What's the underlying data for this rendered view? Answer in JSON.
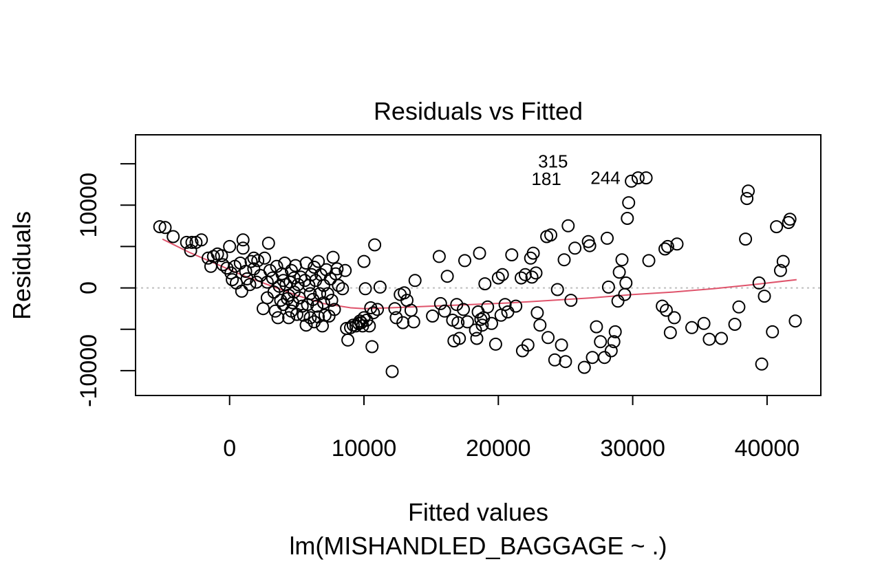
{
  "chart_data": {
    "type": "scatter",
    "title": "Residuals vs Fitted",
    "xlabel": "Fitted values",
    "sublabel": "lm(MISHANDLED_BAGGAGE ~ .)",
    "ylabel": "Residuals",
    "xlim": [
      -7000,
      44000
    ],
    "ylim": [
      -13000,
      18500
    ],
    "x_ticks": [
      {
        "value": 0,
        "label": "0"
      },
      {
        "value": 10000,
        "label": "10000"
      },
      {
        "value": 20000,
        "label": "20000"
      },
      {
        "value": 30000,
        "label": "30000"
      },
      {
        "value": 40000,
        "label": "40000"
      }
    ],
    "y_ticks": [
      {
        "value": -10000,
        "label": "-10000"
      },
      {
        "value": 0,
        "label": "0"
      },
      {
        "value": 10000,
        "label": "10000"
      }
    ],
    "y_minor_ticks": [
      -5000,
      5000,
      15000
    ],
    "reference_line": {
      "y": 0,
      "color": "#bebebe",
      "style": "dotted"
    },
    "point_color": "#000000",
    "smooth_color": "#df536b",
    "smooth": [
      [
        -5000,
        5900
      ],
      [
        -3000,
        4300
      ],
      [
        -1000,
        2900
      ],
      [
        1000,
        1500
      ],
      [
        3000,
        300
      ],
      [
        5000,
        -900
      ],
      [
        7000,
        -1900
      ],
      [
        9000,
        -2400
      ],
      [
        10000,
        -2500
      ],
      [
        12000,
        -2400
      ],
      [
        15000,
        -2200
      ],
      [
        18000,
        -2000
      ],
      [
        21000,
        -1800
      ],
      [
        24000,
        -1500
      ],
      [
        27000,
        -1200
      ],
      [
        30000,
        -800
      ],
      [
        33000,
        -500
      ],
      [
        36000,
        -100
      ],
      [
        39000,
        400
      ],
      [
        42200,
        1000
      ]
    ],
    "annotations": [
      {
        "label": "315",
        "x": 25900,
        "y": 15300
      },
      {
        "label": "181",
        "x": 25400,
        "y": 13200
      },
      {
        "label": "244",
        "x": 29800,
        "y": 13300
      }
    ],
    "points": [
      [
        -5200,
        7400
      ],
      [
        -4800,
        7300
      ],
      [
        -4200,
        6200
      ],
      [
        -3200,
        5500
      ],
      [
        -2900,
        4500
      ],
      [
        -2800,
        5500
      ],
      [
        -2500,
        5500
      ],
      [
        -2100,
        5800
      ],
      [
        -1600,
        3600
      ],
      [
        -1400,
        2600
      ],
      [
        -1200,
        3800
      ],
      [
        -900,
        4100
      ],
      [
        -600,
        3900
      ],
      [
        -500,
        2800
      ],
      [
        -200,
        2400
      ],
      [
        0,
        5000
      ],
      [
        100,
        1800
      ],
      [
        200,
        1000
      ],
      [
        400,
        2600
      ],
      [
        500,
        600
      ],
      [
        800,
        3000
      ],
      [
        900,
        -400
      ],
      [
        1000,
        4800
      ],
      [
        1000,
        5800
      ],
      [
        1200,
        2000
      ],
      [
        1300,
        1100
      ],
      [
        1500,
        400
      ],
      [
        1600,
        3200
      ],
      [
        1800,
        3600
      ],
      [
        1800,
        2300
      ],
      [
        2000,
        700
      ],
      [
        2100,
        3300
      ],
      [
        2300,
        1500
      ],
      [
        2500,
        -2500
      ],
      [
        2600,
        3600
      ],
      [
        2800,
        -1200
      ],
      [
        2800,
        700
      ],
      [
        2900,
        5400
      ],
      [
        3000,
        2100
      ],
      [
        3200,
        1200
      ],
      [
        3300,
        -500
      ],
      [
        3400,
        -2800
      ],
      [
        3500,
        2600
      ],
      [
        3600,
        -3600
      ],
      [
        3700,
        200
      ],
      [
        3800,
        -1500
      ],
      [
        3900,
        1700
      ],
      [
        4000,
        900
      ],
      [
        4000,
        -2000
      ],
      [
        4100,
        3000
      ],
      [
        4200,
        400
      ],
      [
        4300,
        -1300
      ],
      [
        4400,
        -900
      ],
      [
        4400,
        -3600
      ],
      [
        4500,
        700
      ],
      [
        4600,
        2100
      ],
      [
        4600,
        -2800
      ],
      [
        4700,
        -1800
      ],
      [
        4800,
        1200
      ],
      [
        4800,
        -500
      ],
      [
        4900,
        2700
      ],
      [
        5000,
        -3200
      ],
      [
        5100,
        400
      ],
      [
        5200,
        -1200
      ],
      [
        5300,
        1300
      ],
      [
        5400,
        -2200
      ],
      [
        5500,
        -3300
      ],
      [
        5600,
        900
      ],
      [
        5700,
        3000
      ],
      [
        5700,
        -4500
      ],
      [
        5800,
        -2000
      ],
      [
        5900,
        300
      ],
      [
        6000,
        -700
      ],
      [
        6000,
        -3600
      ],
      [
        6100,
        1600
      ],
      [
        6200,
        -1400
      ],
      [
        6300,
        2500
      ],
      [
        6300,
        -4100
      ],
      [
        6400,
        900
      ],
      [
        6500,
        -2200
      ],
      [
        6600,
        3200
      ],
      [
        6600,
        -3500
      ],
      [
        6700,
        -700
      ],
      [
        6800,
        1600
      ],
      [
        6900,
        -4600
      ],
      [
        7000,
        300
      ],
      [
        7000,
        -1800
      ],
      [
        7100,
        -3300
      ],
      [
        7200,
        2200
      ],
      [
        7300,
        -700
      ],
      [
        7400,
        -3400
      ],
      [
        7500,
        1100
      ],
      [
        7600,
        -1500
      ],
      [
        7700,
        3700
      ],
      [
        7800,
        -2600
      ],
      [
        7900,
        1700
      ],
      [
        8000,
        2300
      ],
      [
        8100,
        300
      ],
      [
        8400,
        -100
      ],
      [
        8600,
        2100
      ],
      [
        8700,
        -4900
      ],
      [
        8800,
        -6300
      ],
      [
        9000,
        -4800
      ],
      [
        9200,
        -4500
      ],
      [
        9400,
        -4600
      ],
      [
        9600,
        -4300
      ],
      [
        9700,
        -4000
      ],
      [
        9800,
        -4200
      ],
      [
        9900,
        -4600
      ],
      [
        10000,
        -3600
      ],
      [
        10000,
        3200
      ],
      [
        10100,
        -100
      ],
      [
        10200,
        -3900
      ],
      [
        10400,
        -4600
      ],
      [
        10500,
        -2400
      ],
      [
        10600,
        -7100
      ],
      [
        10700,
        -3000
      ],
      [
        10800,
        5200
      ],
      [
        11000,
        -2600
      ],
      [
        11200,
        100
      ],
      [
        12100,
        -10100
      ],
      [
        12300,
        -2500
      ],
      [
        12400,
        -3600
      ],
      [
        12700,
        -800
      ],
      [
        12900,
        -4200
      ],
      [
        13000,
        -600
      ],
      [
        13200,
        -1500
      ],
      [
        13500,
        -2700
      ],
      [
        13700,
        -4100
      ],
      [
        13800,
        900
      ],
      [
        15100,
        -3400
      ],
      [
        15600,
        3800
      ],
      [
        15700,
        -1900
      ],
      [
        16000,
        -2800
      ],
      [
        16200,
        1400
      ],
      [
        16600,
        -3900
      ],
      [
        16700,
        -6400
      ],
      [
        16900,
        -2000
      ],
      [
        17000,
        -4200
      ],
      [
        17100,
        -6100
      ],
      [
        17400,
        -2600
      ],
      [
        17500,
        3300
      ],
      [
        17700,
        -4100
      ],
      [
        18300,
        -5100
      ],
      [
        18400,
        -6100
      ],
      [
        18500,
        -2900
      ],
      [
        18600,
        4200
      ],
      [
        18700,
        -3800
      ],
      [
        18800,
        -4500
      ],
      [
        18900,
        -3600
      ],
      [
        19000,
        500
      ],
      [
        19200,
        -2300
      ],
      [
        19500,
        -4300
      ],
      [
        19800,
        -6800
      ],
      [
        20000,
        1200
      ],
      [
        20200,
        -3300
      ],
      [
        20300,
        1600
      ],
      [
        20500,
        -2000
      ],
      [
        20700,
        -2900
      ],
      [
        21000,
        4000
      ],
      [
        21300,
        -2200
      ],
      [
        21700,
        1200
      ],
      [
        21800,
        -7600
      ],
      [
        22000,
        1600
      ],
      [
        22200,
        -6900
      ],
      [
        22400,
        3600
      ],
      [
        22500,
        1300
      ],
      [
        22600,
        4200
      ],
      [
        22800,
        1800
      ],
      [
        22900,
        -3000
      ],
      [
        23100,
        -4500
      ],
      [
        23600,
        6200
      ],
      [
        23700,
        -6000
      ],
      [
        23900,
        6400
      ],
      [
        24200,
        -8700
      ],
      [
        24400,
        -200
      ],
      [
        24700,
        -6900
      ],
      [
        24900,
        3400
      ],
      [
        25000,
        -8900
      ],
      [
        25200,
        7500
      ],
      [
        25400,
        -1500
      ],
      [
        25700,
        4800
      ],
      [
        26400,
        -9600
      ],
      [
        26700,
        5600
      ],
      [
        26800,
        5100
      ],
      [
        27000,
        -8400
      ],
      [
        27300,
        -4700
      ],
      [
        27600,
        -6500
      ],
      [
        27900,
        -8400
      ],
      [
        28100,
        6000
      ],
      [
        28200,
        100
      ],
      [
        28400,
        -7600
      ],
      [
        28600,
        -6500
      ],
      [
        28700,
        -5300
      ],
      [
        28900,
        -1600
      ],
      [
        29000,
        1900
      ],
      [
        29200,
        3400
      ],
      [
        29400,
        -800
      ],
      [
        29500,
        600
      ],
      [
        29600,
        8400
      ],
      [
        29700,
        10300
      ],
      [
        29900,
        12900
      ],
      [
        30400,
        13300
      ],
      [
        31000,
        13300
      ],
      [
        31200,
        3300
      ],
      [
        32200,
        -2200
      ],
      [
        32400,
        4700
      ],
      [
        32500,
        -2700
      ],
      [
        32600,
        5000
      ],
      [
        32800,
        -5400
      ],
      [
        33100,
        -3600
      ],
      [
        33300,
        5300
      ],
      [
        34400,
        -4800
      ],
      [
        35300,
        -4300
      ],
      [
        35700,
        -6200
      ],
      [
        36600,
        -6100
      ],
      [
        37600,
        -4400
      ],
      [
        37900,
        -2300
      ],
      [
        38400,
        5900
      ],
      [
        38500,
        10800
      ],
      [
        38600,
        11700
      ],
      [
        39400,
        600
      ],
      [
        39600,
        -9200
      ],
      [
        39800,
        -1000
      ],
      [
        40400,
        -5300
      ],
      [
        40700,
        7400
      ],
      [
        41000,
        2100
      ],
      [
        41200,
        3200
      ],
      [
        41600,
        7900
      ],
      [
        41700,
        8300
      ],
      [
        42100,
        -4000
      ]
    ]
  }
}
